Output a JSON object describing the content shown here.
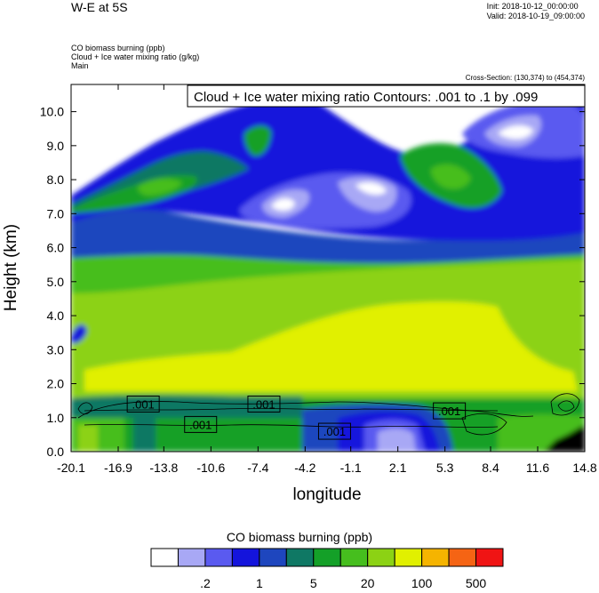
{
  "header": {
    "title": "W-E at 5S",
    "init": "Init: 2018-10-12_00:00:00",
    "valid": "Valid: 2018-10-19_09:00:00",
    "field1": "CO biomass burning   (ppb)",
    "field2": "Cloud + Ice water mixing ratio   (g/kg)",
    "field3": "Main",
    "cross_section": "Cross-Section: (130,374) to (454,374)"
  },
  "chart_data": {
    "type": "heatmap",
    "contour_label": "Cloud + Ice water mixing ratio Contours: .001 to .1 by .099",
    "xlabel": "longitude",
    "ylabel": "Height (km)",
    "xlim": [
      -20.1,
      14.8
    ],
    "ylim": [
      0.0,
      10.8
    ],
    "x_ticks": [
      "-20.1",
      "-16.9",
      "-13.8",
      "-10.6",
      "-7.4",
      "-4.2",
      "-1.1",
      "2.1",
      "5.3",
      "8.4",
      "11.6",
      "14.8"
    ],
    "x_tick_values": [
      -20.1,
      -16.9,
      -13.8,
      -10.6,
      -7.4,
      -4.2,
      -1.1,
      2.1,
      5.3,
      8.4,
      11.6,
      14.8
    ],
    "y_ticks": [
      "0.0",
      "1.0",
      "2.0",
      "3.0",
      "4.0",
      "5.0",
      "6.0",
      "7.0",
      "8.0",
      "9.0",
      "10.0"
    ],
    "y_tick_values": [
      0,
      1,
      2,
      3,
      4,
      5,
      6,
      7,
      8,
      9,
      10
    ],
    "contour_value_labels": [
      {
        "text": ".001",
        "x": -15.2,
        "y": 1.4
      },
      {
        "text": ".001",
        "x": -7.0,
        "y": 1.4
      },
      {
        "text": ".001",
        "x": -11.3,
        "y": 0.8
      },
      {
        "text": ".001",
        "x": -2.2,
        "y": 0.6
      },
      {
        "text": ".001",
        "x": 5.6,
        "y": 1.2
      }
    ],
    "colorbar": {
      "title": "CO biomass burning  (ppb)",
      "colors": [
        "#ffffff",
        "#a8a8f5",
        "#5a5af0",
        "#1414dc",
        "#1e46be",
        "#0f7864",
        "#14a028",
        "#46be1e",
        "#8cd214",
        "#e1f000",
        "#f5b400",
        "#f56414",
        "#f01414"
      ],
      "labels": [
        ".2",
        "1",
        "5",
        "20",
        "100",
        "500"
      ]
    }
  }
}
